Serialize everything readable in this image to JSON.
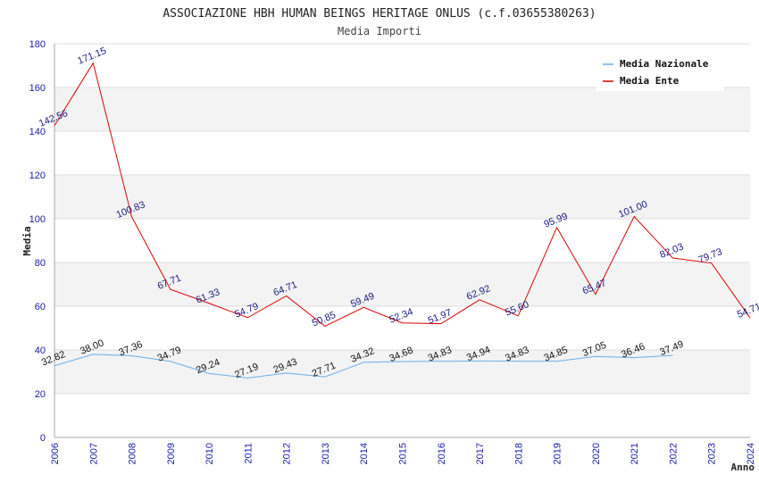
{
  "chart_data": {
    "type": "line",
    "title": "ASSOCIAZIONE HBH HUMAN BEINGS HERITAGE ONLUS (c.f.03655380263)",
    "subtitle": "Media Importi",
    "xlabel": "Anno",
    "ylabel": "Media",
    "ylim": [
      0,
      180
    ],
    "yticks": [
      0,
      20,
      40,
      60,
      80,
      100,
      120,
      140,
      160,
      180
    ],
    "x": [
      "2006",
      "2007",
      "2008",
      "2009",
      "2010",
      "2011",
      "2012",
      "2013",
      "2014",
      "2015",
      "2016",
      "2017",
      "2018",
      "2019",
      "2020",
      "2021",
      "2022",
      "2023",
      "2024"
    ],
    "grid": "horizontal, alternating bands",
    "legend_position": "top-right",
    "series": [
      {
        "name": "Media Nazionale",
        "color": "#6aaee8",
        "values": [
          32.82,
          38.0,
          37.36,
          34.79,
          29.24,
          27.19,
          29.43,
          27.71,
          34.32,
          34.68,
          34.83,
          34.94,
          34.83,
          34.85,
          37.05,
          36.46,
          37.49,
          null,
          null
        ],
        "labels": [
          "32.82",
          "38.00",
          "37.36",
          "34.79",
          "29.24",
          "27.19",
          "29.43",
          "27.71",
          "34.32",
          "34.68",
          "34.83",
          "34.94",
          "34.83",
          "34.85",
          "37.05",
          "36.46",
          "37.49",
          null,
          null
        ]
      },
      {
        "name": "Media Ente",
        "color": "#dd0000",
        "values": [
          142.56,
          171.15,
          100.83,
          67.71,
          61.33,
          54.79,
          64.71,
          50.85,
          59.49,
          52.34,
          51.97,
          62.92,
          55.6,
          95.99,
          65.47,
          101.0,
          82.03,
          79.73,
          54.71
        ],
        "labels": [
          "142.56",
          "171.15",
          "100.83",
          "67.71",
          "61.33",
          "54.79",
          "64.71",
          "50.85",
          "59.49",
          "52.34",
          "51.97",
          "62.92",
          "55.60",
          "95.99",
          "65.47",
          "101.00",
          "82.03",
          "79.73",
          "54.71"
        ]
      }
    ]
  }
}
